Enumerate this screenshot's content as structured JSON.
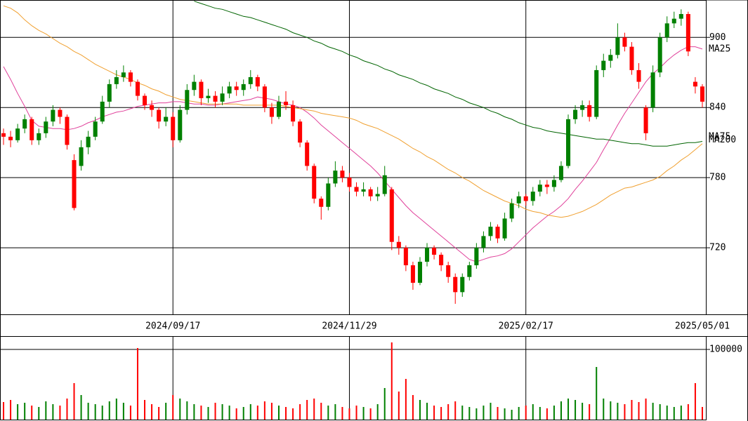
{
  "chart_data": {
    "type": "candlestick",
    "categories": [
      null,
      null,
      null,
      null,
      null,
      null,
      null,
      null,
      null,
      null,
      null,
      null,
      null,
      null,
      null,
      null,
      null,
      null,
      null,
      null,
      null,
      null,
      null,
      null,
      "2024/09/17",
      null,
      null,
      null,
      null,
      null,
      null,
      null,
      null,
      null,
      null,
      null,
      null,
      null,
      null,
      null,
      null,
      null,
      null,
      null,
      null,
      null,
      null,
      null,
      null,
      "2024/11/29",
      null,
      null,
      null,
      null,
      null,
      null,
      null,
      null,
      null,
      null,
      null,
      null,
      null,
      null,
      null,
      null,
      null,
      null,
      null,
      null,
      null,
      null,
      null,
      null,
      "2025/02/17",
      null,
      null,
      null,
      null,
      null,
      null,
      null,
      null,
      null,
      null,
      null,
      null,
      null,
      null,
      null,
      null,
      null,
      null,
      null,
      null,
      null,
      null,
      null,
      null,
      "2025/05/01"
    ],
    "ohlc": [
      [
        818,
        822,
        808,
        815
      ],
      [
        815,
        820,
        806,
        812
      ],
      [
        812,
        826,
        810,
        822
      ],
      [
        822,
        834,
        818,
        830
      ],
      [
        830,
        832,
        808,
        812
      ],
      [
        812,
        822,
        808,
        818
      ],
      [
        818,
        832,
        814,
        828
      ],
      [
        828,
        842,
        824,
        838
      ],
      [
        838,
        840,
        826,
        832
      ],
      [
        832,
        834,
        804,
        808
      ],
      [
        795,
        800,
        752,
        754
      ],
      [
        790,
        812,
        786,
        806
      ],
      [
        806,
        820,
        800,
        815
      ],
      [
        815,
        832,
        812,
        828
      ],
      [
        828,
        850,
        826,
        845
      ],
      [
        845,
        864,
        840,
        860
      ],
      [
        860,
        872,
        856,
        866
      ],
      [
        866,
        876,
        862,
        870
      ],
      [
        870,
        872,
        858,
        862
      ],
      [
        862,
        864,
        846,
        850
      ],
      [
        850,
        852,
        838,
        842
      ],
      [
        842,
        846,
        832,
        838
      ],
      [
        838,
        840,
        822,
        828
      ],
      [
        828,
        840,
        824,
        832
      ],
      [
        832,
        836,
        806,
        812
      ],
      [
        812,
        842,
        810,
        838
      ],
      [
        838,
        860,
        834,
        855
      ],
      [
        855,
        868,
        850,
        862
      ],
      [
        862,
        864,
        842,
        848
      ],
      [
        848,
        856,
        844,
        850
      ],
      [
        850,
        854,
        840,
        845
      ],
      [
        845,
        858,
        842,
        852
      ],
      [
        852,
        862,
        848,
        858
      ],
      [
        858,
        862,
        850,
        855
      ],
      [
        855,
        864,
        850,
        860
      ],
      [
        860,
        872,
        856,
        866
      ],
      [
        866,
        868,
        854,
        858
      ],
      [
        858,
        860,
        836,
        840
      ],
      [
        840,
        844,
        826,
        832
      ],
      [
        832,
        850,
        830,
        845
      ],
      [
        845,
        854,
        838,
        842
      ],
      [
        842,
        846,
        824,
        828
      ],
      [
        828,
        830,
        806,
        810
      ],
      [
        810,
        812,
        786,
        790
      ],
      [
        790,
        792,
        758,
        762
      ],
      [
        762,
        764,
        744,
        755
      ],
      [
        755,
        780,
        752,
        775
      ],
      [
        775,
        794,
        772,
        786
      ],
      [
        786,
        790,
        776,
        780
      ],
      [
        780,
        784,
        768,
        772
      ],
      [
        772,
        776,
        764,
        768
      ],
      [
        768,
        776,
        764,
        770
      ],
      [
        770,
        772,
        760,
        764
      ],
      [
        764,
        772,
        760,
        766
      ],
      [
        766,
        790,
        764,
        782
      ],
      [
        770,
        772,
        718,
        725
      ],
      [
        725,
        730,
        714,
        720
      ],
      [
        720,
        722,
        700,
        705
      ],
      [
        705,
        708,
        684,
        690
      ],
      [
        690,
        712,
        688,
        708
      ],
      [
        708,
        724,
        704,
        720
      ],
      [
        720,
        722,
        710,
        714
      ],
      [
        714,
        716,
        700,
        705
      ],
      [
        705,
        708,
        690,
        695
      ],
      [
        695,
        698,
        672,
        682
      ],
      [
        682,
        698,
        678,
        695
      ],
      [
        695,
        708,
        692,
        705
      ],
      [
        705,
        724,
        702,
        720
      ],
      [
        720,
        734,
        716,
        730
      ],
      [
        730,
        742,
        726,
        738
      ],
      [
        738,
        740,
        724,
        728
      ],
      [
        728,
        750,
        726,
        745
      ],
      [
        745,
        762,
        742,
        758
      ],
      [
        758,
        768,
        754,
        764
      ],
      [
        764,
        766,
        756,
        760
      ],
      [
        760,
        772,
        756,
        768
      ],
      [
        768,
        778,
        764,
        774
      ],
      [
        774,
        778,
        766,
        772
      ],
      [
        772,
        782,
        768,
        778
      ],
      [
        778,
        794,
        776,
        790
      ],
      [
        790,
        834,
        788,
        830
      ],
      [
        830,
        842,
        826,
        838
      ],
      [
        838,
        846,
        832,
        842
      ],
      [
        842,
        846,
        828,
        832
      ],
      [
        832,
        876,
        830,
        872
      ],
      [
        872,
        886,
        866,
        880
      ],
      [
        880,
        890,
        874,
        885
      ],
      [
        885,
        912,
        882,
        900
      ],
      [
        900,
        904,
        888,
        892
      ],
      [
        892,
        896,
        868,
        872
      ],
      [
        872,
        878,
        856,
        862
      ],
      [
        840,
        842,
        812,
        818
      ],
      [
        840,
        876,
        836,
        870
      ],
      [
        870,
        904,
        866,
        900
      ],
      [
        900,
        918,
        896,
        912
      ],
      [
        912,
        922,
        908,
        916
      ],
      [
        916,
        924,
        910,
        920
      ],
      [
        920,
        922,
        884,
        888
      ],
      [
        862,
        866,
        852,
        858
      ],
      [
        858,
        860,
        840,
        845
      ]
    ],
    "up_color": "#008000",
    "down_color": "#ff0000",
    "ylim": [
      663,
      932
    ],
    "yticks": [
      720,
      780,
      840,
      900
    ],
    "grid": true,
    "series": [
      {
        "name": "MA25",
        "color": "#e0409a",
        "values": [
          875,
          864,
          852,
          841,
          829,
          824,
          823,
          822,
          822,
          821,
          822,
          824,
          827,
          829,
          832,
          834,
          836,
          837,
          839,
          841,
          842,
          843,
          844,
          844,
          845,
          845,
          844,
          843,
          843,
          842,
          842,
          843,
          844,
          845,
          846,
          847,
          849,
          848,
          847,
          845,
          843,
          842,
          840,
          836,
          831,
          825,
          820,
          815,
          810,
          805,
          800,
          795,
          790,
          784,
          777,
          770,
          763,
          756,
          750,
          745,
          740,
          735,
          730,
          725,
          720,
          715,
          710,
          708,
          710,
          712,
          713,
          715,
          719,
          725,
          731,
          737,
          742,
          747,
          751,
          756,
          762,
          770,
          777,
          785,
          793,
          804,
          814,
          825,
          835,
          844,
          853,
          862,
          869,
          874,
          880,
          885,
          889,
          892,
          892,
          890
        ]
      },
      {
        "name": "MA75",
        "color": "#f0a030",
        "values": [
          927,
          925,
          921,
          915,
          910,
          906,
          903,
          899,
          895,
          892,
          888,
          885,
          881,
          877,
          874,
          871,
          868,
          866,
          864,
          861,
          859,
          856,
          854,
          851,
          849,
          847,
          846,
          845,
          844,
          843,
          843,
          843,
          843,
          843,
          842,
          842,
          842,
          842,
          842,
          842,
          841,
          840,
          839,
          838,
          837,
          835,
          834,
          833,
          832,
          831,
          829,
          826,
          824,
          822,
          819,
          816,
          813,
          809,
          805,
          802,
          798,
          795,
          791,
          787,
          784,
          780,
          777,
          773,
          769,
          766,
          763,
          760,
          758,
          756,
          753,
          751,
          750,
          748,
          747,
          746,
          747,
          749,
          751,
          754,
          757,
          761,
          765,
          768,
          771,
          772,
          774,
          776,
          778,
          781,
          786,
          790,
          795,
          799,
          804,
          809
        ]
      },
      {
        "name": "MA200",
        "color": "#006400",
        "values": [
          null,
          null,
          null,
          null,
          null,
          null,
          null,
          null,
          null,
          null,
          null,
          null,
          null,
          null,
          null,
          null,
          null,
          null,
          null,
          null,
          null,
          null,
          null,
          null,
          null,
          null,
          null,
          931,
          929,
          927,
          925,
          924,
          922,
          920,
          918,
          917,
          915,
          913,
          911,
          909,
          907,
          904,
          902,
          900,
          897,
          895,
          892,
          890,
          888,
          885,
          883,
          880,
          878,
          876,
          873,
          871,
          868,
          866,
          864,
          861,
          859,
          856,
          854,
          852,
          849,
          847,
          844,
          842,
          840,
          837,
          835,
          832,
          830,
          827,
          825,
          823,
          822,
          820,
          819,
          818,
          817,
          816,
          815,
          814,
          813,
          813,
          812,
          811,
          810,
          809,
          809,
          808,
          807,
          807,
          807,
          808,
          809,
          810,
          810,
          811
        ]
      }
    ],
    "volume": {
      "values": [
        25000,
        28000,
        22000,
        24000,
        20000,
        18000,
        26000,
        22000,
        20000,
        30000,
        52000,
        35000,
        24000,
        22000,
        20000,
        26000,
        30000,
        24000,
        20000,
        102000,
        28000,
        22000,
        18000,
        24000,
        35000,
        30000,
        26000,
        22000,
        20000,
        18000,
        24000,
        22000,
        20000,
        16000,
        18000,
        22000,
        20000,
        26000,
        24000,
        20000,
        18000,
        16000,
        22000,
        28000,
        30000,
        24000,
        20000,
        22000,
        18000,
        16000,
        20000,
        18000,
        16000,
        22000,
        45000,
        110000,
        40000,
        58000,
        35000,
        28000,
        24000,
        20000,
        18000,
        22000,
        26000,
        20000,
        18000,
        16000,
        20000,
        24000,
        18000,
        16000,
        14000,
        18000,
        20000,
        22000,
        18000,
        16000,
        20000,
        26000,
        30000,
        28000,
        24000,
        22000,
        75000,
        30000,
        26000,
        24000,
        22000,
        28000,
        25000,
        30000,
        24000,
        22000,
        20000,
        18000,
        20000,
        22000,
        52000,
        18000
      ],
      "ylim": [
        0,
        118000
      ],
      "yticks": [
        100000
      ]
    }
  }
}
